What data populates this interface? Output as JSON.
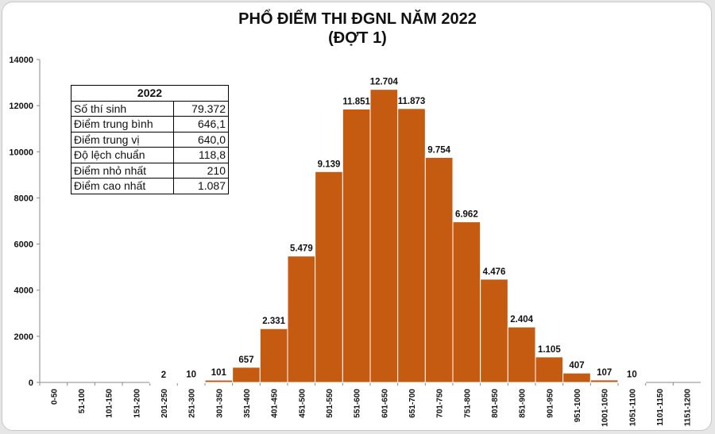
{
  "title_line1": "PHỔ ĐIỂM THI ĐGNL NĂM 2022",
  "title_line2": "(ĐỢT 1)",
  "stats": {
    "header": "2022",
    "rows": [
      {
        "label": "Số thí sinh",
        "value": "79.372"
      },
      {
        "label": "Điểm trung bình",
        "value": "646,1"
      },
      {
        "label": "Điểm trung vị",
        "value": "640,0"
      },
      {
        "label": "Độ lệch chuẩn",
        "value": "118,8"
      },
      {
        "label": "Điểm nhỏ nhất",
        "value": "210"
      },
      {
        "label": "Điểm cao nhất",
        "value": "1.087"
      }
    ]
  },
  "chart_data": {
    "type": "bar",
    "title": "PHỔ ĐIỂM THI ĐGNL NĂM 2022 (ĐỢT 1)",
    "categories": [
      "0-50",
      "51-100",
      "101-150",
      "151-200",
      "201-250",
      "251-300",
      "301-350",
      "351-400",
      "401-450",
      "451-500",
      "501-550",
      "551-600",
      "601-650",
      "651-700",
      "701-750",
      "751-800",
      "801-850",
      "851-900",
      "901-950",
      "951-1000",
      "1001-1050",
      "1051-1100",
      "1101-1150",
      "1151-1200"
    ],
    "values": [
      0,
      0,
      0,
      0,
      2,
      10,
      101,
      657,
      2331,
      5479,
      9139,
      11851,
      12704,
      11873,
      9754,
      6962,
      4476,
      2404,
      1105,
      407,
      107,
      10,
      0,
      0
    ],
    "labels": [
      "",
      "",
      "",
      "",
      "2",
      "10",
      "101",
      "657",
      "2.331",
      "5.479",
      "9.139",
      "11.851",
      "12.704",
      "11.873",
      "9.754",
      "6.962",
      "4.476",
      "2.404",
      "1.105",
      "407",
      "107",
      "10",
      "",
      ""
    ],
    "ylim": [
      0,
      14000
    ],
    "yticks": [
      0,
      2000,
      4000,
      6000,
      8000,
      10000,
      12000,
      14000
    ],
    "bar_color": "#c55a11",
    "grid": false,
    "legend": "none"
  }
}
